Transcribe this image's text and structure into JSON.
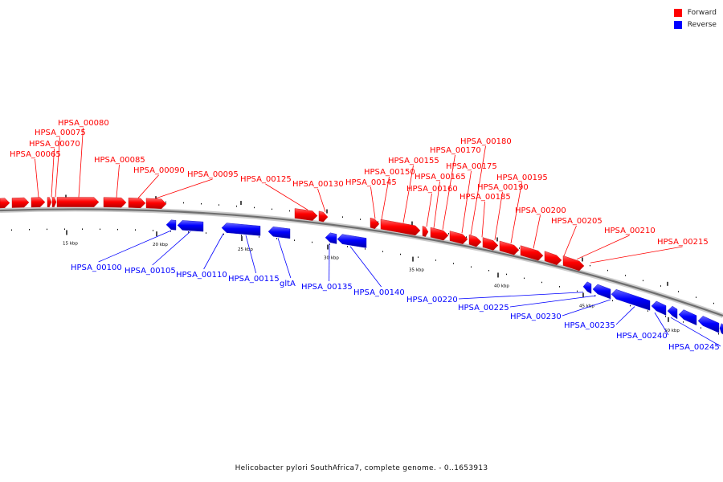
{
  "legend": {
    "items": [
      {
        "label": "Forward",
        "color": "#ff0000"
      },
      {
        "label": "Reverse",
        "color": "#0000ff"
      }
    ]
  },
  "caption": "Helicobacter pylori SouthAfrica7, complete genome. - 0..1653913",
  "colors": {
    "forward": "#ff0000",
    "reverse": "#0000ff",
    "backbone": "#777777",
    "ticks": "#000000"
  },
  "scale": {
    "labels": [
      "15 kbp",
      "20 kbp",
      "25 kbp",
      "30 kbp",
      "35 kbp",
      "40 kbp",
      "45 kbp",
      "50 kbp"
    ]
  },
  "forward_genes": [
    "HPSA_00065",
    "HPSA_00070",
    "HPSA_00075",
    "HPSA_00080",
    "HPSA_00085",
    "HPSA_00090",
    "HPSA_00095",
    "HPSA_00125",
    "HPSA_00130",
    "HPSA_00145",
    "HPSA_00150",
    "HPSA_00155",
    "HPSA_00160",
    "HPSA_00165",
    "HPSA_00170",
    "HPSA_00175",
    "HPSA_00180",
    "HPSA_00185",
    "HPSA_00190",
    "HPSA_00195",
    "HPSA_00200",
    "HPSA_00205",
    "HPSA_00210",
    "HPSA_00215"
  ],
  "reverse_genes": [
    "HPSA_00100",
    "HPSA_00105",
    "HPSA_00110",
    "HPSA_00115",
    "gltA",
    "HPSA_00135",
    "HPSA_00140",
    "HPSA_00220",
    "HPSA_00225",
    "HPSA_00230",
    "HPSA_00235",
    "HPSA_00240",
    "HPSA_00245"
  ]
}
